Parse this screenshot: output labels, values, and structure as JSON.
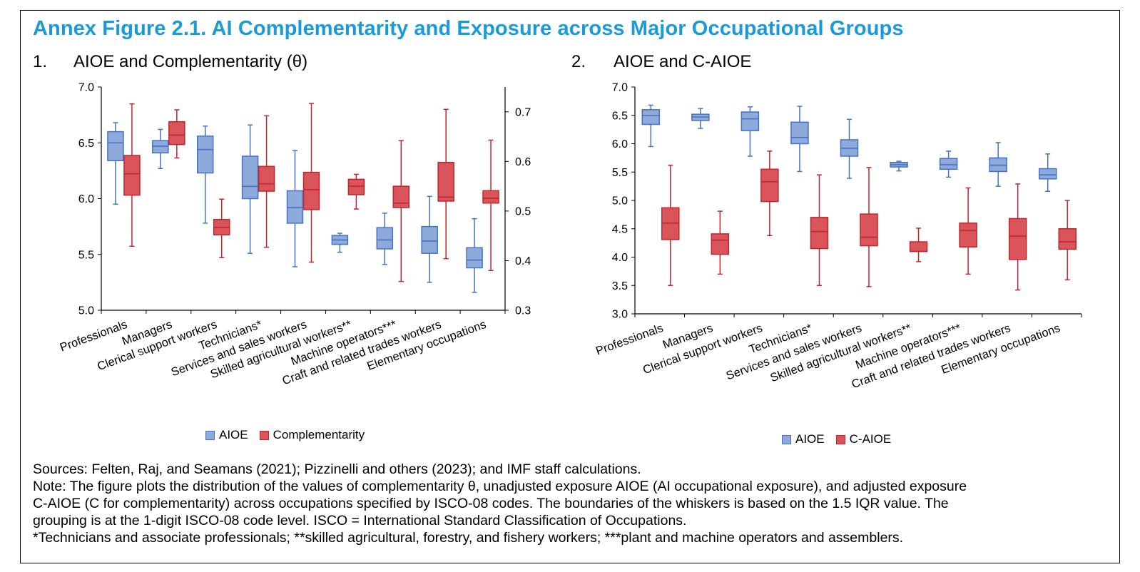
{
  "figure_title": "Annex Figure 2.1. AI Complementarity and Exposure across Major Occupational Groups",
  "colors": {
    "title": "#1a9ad6",
    "aioe_fill": "#8eaadb",
    "aioe_stroke": "#4472c4",
    "red_fill": "#d9545b",
    "red_stroke": "#c0262d"
  },
  "notes": {
    "sources": "Sources: Felten, Raj, and Seamans (2021); Pizzinelli and others (2023); and IMF staff calculations.",
    "note_lines": [
      "Note: The figure plots the distribution of the values of complementarity θ, unadjusted exposure AIOE (AI occupational exposure), and adjusted exposure",
      "C-AIOE (C for complementarity) across occupations specified by ISCO-08 codes. The boundaries of the whiskers is based on the 1.5 IQR value. The",
      "grouping is at the 1-digit ISCO-08 code level. ISCO = International Standard Classification of Occupations."
    ],
    "footnote": "*Technicians and associate professionals; **skilled agricultural, forestry, and fishery workers; ***plant and machine operators and assemblers."
  },
  "chart_data": [
    {
      "type": "boxplot",
      "number": "1.",
      "title": "AIOE and Complementarity  (θ)",
      "categories": [
        "Professionals",
        "Managers",
        "Clerical support workers",
        "Technicians*",
        "Services and sales workers",
        "Skilled agricultural workers**",
        "Machine operators***",
        "Craft and related trades workers",
        "Elementary occupations"
      ],
      "left_axis": {
        "min": 5.0,
        "max": 7.0,
        "ticks": [
          "5.0",
          "5.5",
          "6.0",
          "6.5",
          "7.0"
        ]
      },
      "right_axis": {
        "min": 0.3,
        "max": 0.75,
        "ticks": [
          "0.3",
          "0.4",
          "0.5",
          "0.6",
          "0.7"
        ]
      },
      "legend": [
        "AIOE",
        "Complementarity"
      ],
      "series": [
        {
          "name": "AIOE",
          "axis": "left",
          "color": "#8eaadb",
          "stroke": "#4472c4",
          "boxes": [
            [
              5.95,
              6.34,
              6.5,
              6.6,
              6.68
            ],
            [
              6.27,
              6.41,
              6.47,
              6.52,
              6.62
            ],
            [
              5.78,
              6.23,
              6.44,
              6.56,
              6.65
            ],
            [
              5.51,
              6.0,
              6.11,
              6.38,
              6.66
            ],
            [
              5.39,
              5.78,
              5.92,
              6.07,
              6.43
            ],
            [
              5.52,
              5.59,
              5.63,
              5.67,
              5.69
            ],
            [
              5.41,
              5.55,
              5.63,
              5.74,
              5.87
            ],
            [
              5.25,
              5.51,
              5.62,
              5.75,
              6.02
            ],
            [
              5.16,
              5.38,
              5.45,
              5.56,
              5.82
            ]
          ]
        },
        {
          "name": "Complementarity",
          "axis": "right",
          "color": "#d9545b",
          "stroke": "#c0262d",
          "boxes": [
            [
              0.429,
              0.532,
              0.575,
              0.612,
              0.716
            ],
            [
              0.607,
              0.634,
              0.653,
              0.68,
              0.704
            ],
            [
              0.406,
              0.452,
              0.467,
              0.483,
              0.524
            ],
            [
              0.427,
              0.54,
              0.555,
              0.59,
              0.692
            ],
            [
              0.397,
              0.503,
              0.543,
              0.578,
              0.717
            ],
            [
              0.504,
              0.533,
              0.55,
              0.564,
              0.574
            ],
            [
              0.358,
              0.507,
              0.516,
              0.55,
              0.642
            ],
            [
              0.404,
              0.52,
              0.528,
              0.598,
              0.705
            ],
            [
              0.38,
              0.516,
              0.526,
              0.541,
              0.643
            ]
          ]
        }
      ]
    },
    {
      "type": "boxplot",
      "number": "2.",
      "title": "AIOE and C-AIOE",
      "categories": [
        "Professionals",
        "Managers",
        "Clerical support workers",
        "Technicians*",
        "Services and sales workers",
        "Skilled agricultural workers**",
        "Machine operators***",
        "Craft and related trades workers",
        "Elementary occupations"
      ],
      "left_axis": {
        "min": 3.0,
        "max": 7.0,
        "ticks": [
          "3.0",
          "3.5",
          "4.0",
          "4.5",
          "5.0",
          "5.5",
          "6.0",
          "6.5",
          "7.0"
        ]
      },
      "legend": [
        "AIOE",
        "C-AIOE"
      ],
      "series": [
        {
          "name": "AIOE",
          "axis": "left",
          "color": "#8eaadb",
          "stroke": "#4472c4",
          "boxes": [
            [
              5.95,
              6.34,
              6.5,
              6.6,
              6.68
            ],
            [
              6.27,
              6.41,
              6.47,
              6.52,
              6.62
            ],
            [
              5.78,
              6.23,
              6.44,
              6.56,
              6.65
            ],
            [
              5.51,
              6.0,
              6.11,
              6.38,
              6.66
            ],
            [
              5.39,
              5.78,
              5.92,
              6.07,
              6.43
            ],
            [
              5.52,
              5.59,
              5.63,
              5.67,
              5.69
            ],
            [
              5.41,
              5.55,
              5.63,
              5.74,
              5.87
            ],
            [
              5.25,
              5.51,
              5.62,
              5.75,
              6.02
            ],
            [
              5.16,
              5.38,
              5.45,
              5.56,
              5.82
            ]
          ]
        },
        {
          "name": "C-AIOE",
          "axis": "left",
          "color": "#d9545b",
          "stroke": "#c0262d",
          "boxes": [
            [
              3.5,
              4.31,
              4.6,
              4.87,
              5.62
            ],
            [
              3.7,
              4.05,
              4.3,
              4.41,
              4.81
            ],
            [
              4.38,
              4.98,
              5.33,
              5.55,
              5.87
            ],
            [
              3.5,
              4.15,
              4.45,
              4.7,
              5.45
            ],
            [
              3.48,
              4.2,
              4.35,
              4.76,
              5.58
            ],
            [
              3.92,
              4.1,
              4.1,
              4.27,
              4.51
            ],
            [
              3.7,
              4.18,
              4.47,
              4.6,
              5.22
            ],
            [
              3.42,
              3.96,
              4.37,
              4.68,
              5.29
            ],
            [
              3.6,
              4.14,
              4.27,
              4.5,
              5.0
            ]
          ]
        }
      ]
    }
  ]
}
